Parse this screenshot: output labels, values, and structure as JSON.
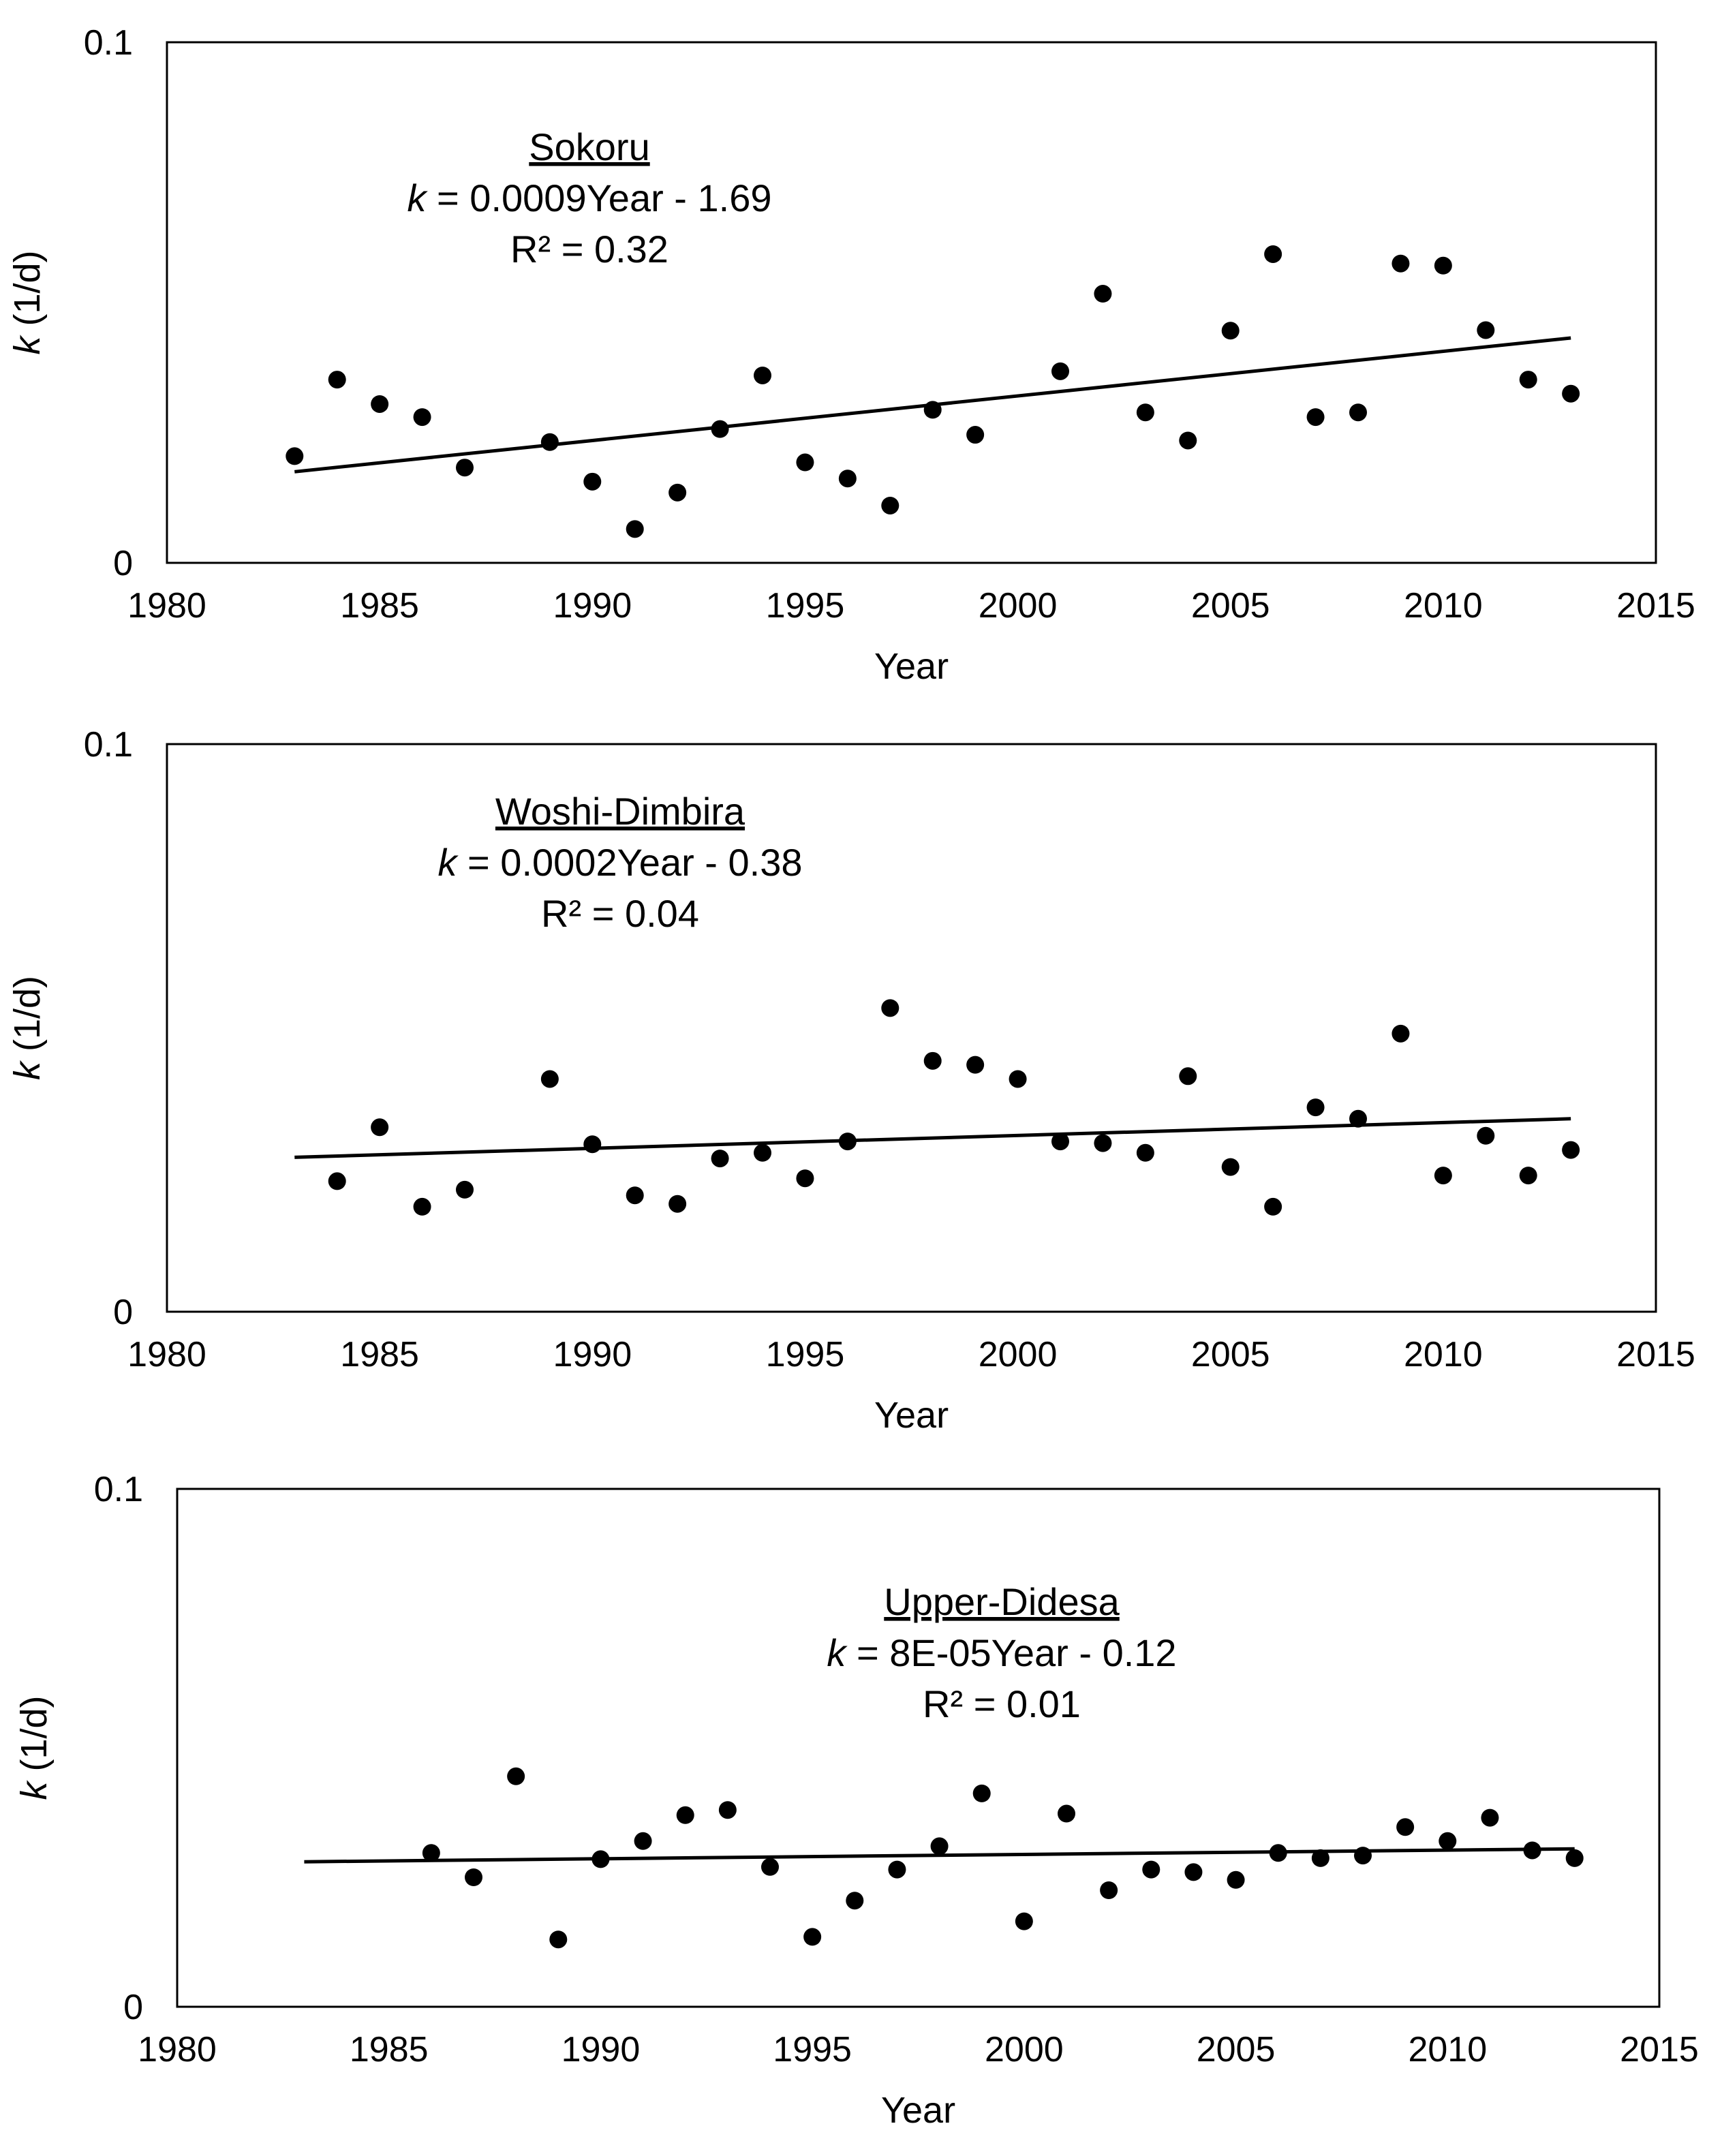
{
  "chart_data": [
    {
      "type": "scatter",
      "site": "Sokoru",
      "equation": {
        "var": "k",
        "rest": " = 0.0009Year - 1.69"
      },
      "r2": "R² = 0.32",
      "xlabel": "Year",
      "ylabel": {
        "var": "k",
        "rest": " (1/d)"
      },
      "xlim": [
        1980,
        2015
      ],
      "ylim": [
        0,
        0.1
      ],
      "xticks": [
        "1980",
        "1985",
        "1990",
        "1995",
        "2000",
        "2005",
        "2010",
        "2015"
      ],
      "yticks": [
        "0",
        "0.1"
      ],
      "trendline": {
        "x": [
          1983,
          2013
        ],
        "y": [
          0.0175,
          0.0432
        ]
      },
      "x": [
        1983,
        1984,
        1985,
        1986,
        1987,
        1989,
        1990,
        1991,
        1992,
        1993,
        1994,
        1995,
        1996,
        1997,
        1998,
        1999,
        2001,
        2002,
        2003,
        2004,
        2005,
        2006,
        2007,
        2008,
        2009,
        2010,
        2011,
        2012,
        2013
      ],
      "y": [
        0.0205,
        0.0352,
        0.0305,
        0.028,
        0.0183,
        0.0232,
        0.0156,
        0.0065,
        0.0135,
        0.0257,
        0.036,
        0.0193,
        0.0162,
        0.011,
        0.0294,
        0.0246,
        0.0368,
        0.0517,
        0.0289,
        0.0235,
        0.0446,
        0.0593,
        0.028,
        0.0289,
        0.0575,
        0.0571,
        0.0447,
        0.0352,
        0.0325
      ]
    },
    {
      "type": "scatter",
      "site": "Woshi-Dimbira",
      "equation": {
        "var": "k",
        "rest": " = 0.0002Year - 0.38"
      },
      "r2": "R² = 0.04",
      "xlabel": "Year",
      "ylabel": {
        "var": "k",
        "rest": " (1/d)"
      },
      "xlim": [
        1980,
        2015
      ],
      "ylim": [
        0,
        0.1
      ],
      "xticks": [
        "1980",
        "1985",
        "1990",
        "1995",
        "2000",
        "2005",
        "2010",
        "2015"
      ],
      "yticks": [
        "0",
        "0.1"
      ],
      "trendline": {
        "x": [
          1983,
          2013
        ],
        "y": [
          0.0272,
          0.034
        ]
      },
      "x": [
        1984,
        1985,
        1986,
        1987,
        1989,
        1990,
        1991,
        1992,
        1993,
        1994,
        1995,
        1996,
        1997,
        1998,
        1999,
        2000,
        2001,
        2002,
        2003,
        2004,
        2005,
        2006,
        2007,
        2008,
        2009,
        2010,
        2011,
        2012,
        2013
      ],
      "y": [
        0.023,
        0.0325,
        0.0185,
        0.0215,
        0.041,
        0.0295,
        0.0205,
        0.019,
        0.027,
        0.028,
        0.0235,
        0.03,
        0.0535,
        0.0442,
        0.0435,
        0.041,
        0.03,
        0.0297,
        0.028,
        0.0415,
        0.0255,
        0.0185,
        0.036,
        0.034,
        0.049,
        0.024,
        0.031,
        0.024,
        0.0285
      ]
    },
    {
      "type": "scatter",
      "site": "Upper-Didesa",
      "equation": {
        "var": "k",
        "rest": " = 8E-05Year - 0.12"
      },
      "r2": "R² = 0.01",
      "xlabel": "Year",
      "ylabel": {
        "var": "k",
        "rest": " (1/d)"
      },
      "xlim": [
        1980,
        2015
      ],
      "ylim": [
        0,
        0.1
      ],
      "xticks": [
        "1980",
        "1985",
        "1990",
        "1995",
        "2000",
        "2005",
        "2010",
        "2015"
      ],
      "yticks": [
        "0",
        "0.1"
      ],
      "trendline": {
        "x": [
          1983,
          2013
        ],
        "y": [
          0.028,
          0.0305
        ]
      },
      "x": [
        1986,
        1987,
        1988,
        1989,
        1990,
        1991,
        1992,
        1993,
        1994,
        1995,
        1996,
        1997,
        1998,
        1999,
        2000,
        2001,
        2002,
        2003,
        2004,
        2005,
        2006,
        2007,
        2008,
        2009,
        2010,
        2011,
        2012,
        2013
      ],
      "y": [
        0.0297,
        0.025,
        0.0445,
        0.013,
        0.0285,
        0.032,
        0.037,
        0.038,
        0.027,
        0.0135,
        0.0205,
        0.0265,
        0.031,
        0.0412,
        0.0165,
        0.0373,
        0.0225,
        0.0265,
        0.026,
        0.0245,
        0.0297,
        0.0287,
        0.0292,
        0.0347,
        0.032,
        0.0365,
        0.0302,
        0.0287
      ]
    }
  ]
}
